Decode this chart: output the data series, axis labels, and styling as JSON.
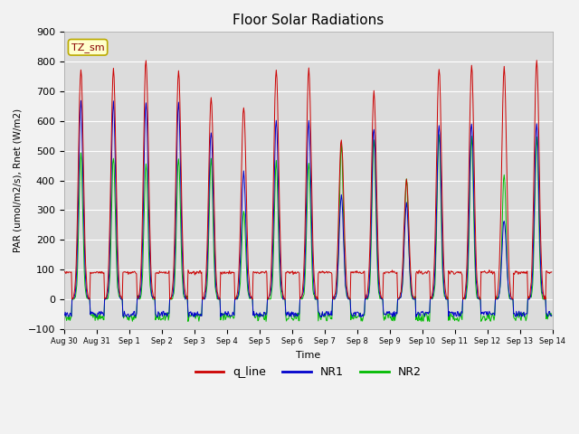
{
  "title": "Floor Solar Radiations",
  "xlabel": "Time",
  "ylabel": "PAR (umol/m2/s), Rnet (W/m2)",
  "ylim": [
    -100,
    900
  ],
  "colors": {
    "q_line": "#cc0000",
    "NR1": "#0000cc",
    "NR2": "#00bb00"
  },
  "legend_label": "TZ_sm",
  "legend_box_facecolor": "#ffffcc",
  "legend_box_edgecolor": "#bbaa00",
  "plot_bg_color": "#dcdcdc",
  "fig_bg_color": "#f2f2f2",
  "grid_color": "#ffffff",
  "line_width": 0.7,
  "title_fontsize": 11,
  "xtick_labels": [
    "Aug 30",
    "Aug 31",
    "Sep 1",
    "Sep 2",
    "Sep 3",
    "Sep 4",
    "Sep 5",
    "Sep 6",
    "Sep 7",
    "Sep 8",
    "Sep 9",
    "Sep 10",
    "Sep 11",
    "Sep 12",
    "Sep 13",
    "Sep 14"
  ],
  "yticks": [
    -100,
    0,
    100,
    200,
    300,
    400,
    500,
    600,
    700,
    800,
    900
  ],
  "q_line_peaks": [
    780,
    775,
    810,
    770,
    680,
    650,
    775,
    775,
    540,
    695,
    400,
    780,
    785,
    780,
    810
  ],
  "NR1_peaks": [
    665,
    665,
    665,
    660,
    565,
    430,
    600,
    600,
    350,
    580,
    325,
    590,
    595,
    265,
    590
  ],
  "NR2_peaks": [
    490,
    480,
    460,
    475,
    475,
    300,
    460,
    460,
    515,
    540,
    405,
    555,
    545,
    425,
    545
  ]
}
